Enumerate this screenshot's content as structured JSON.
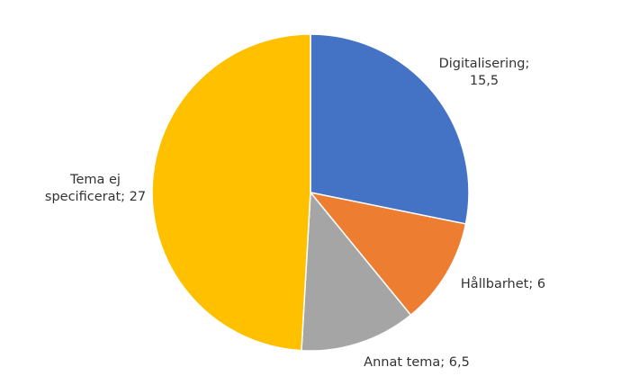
{
  "chart_data": {
    "type": "pie",
    "title": "",
    "categories": [
      "Digitalisering",
      "Hållbarhet",
      "Annat tema",
      "Tema ej specificerat"
    ],
    "values": [
      15.5,
      6,
      6.5,
      27
    ],
    "colors": [
      "#4472c4",
      "#ed7d31",
      "#a5a5a5",
      "#ffc000"
    ],
    "start_angle_deg": 0,
    "direction": "clockwise",
    "legend": "none",
    "data_labels": [
      "Digitalisering; 15,5",
      "Hållbarhet; 6",
      "Annat tema; 6,5",
      "Tema ej specificerat; 27"
    ]
  },
  "labels": {
    "digitalisering": {
      "line1": "Digitalisering;",
      "line2": "15,5"
    },
    "hallbarhet": {
      "line1": "Hållbarhet; 6"
    },
    "annat": {
      "line1": "Annat tema; 6,5"
    },
    "tema_ej": {
      "line1": "Tema ej",
      "line2": "specificerat; 27"
    }
  }
}
